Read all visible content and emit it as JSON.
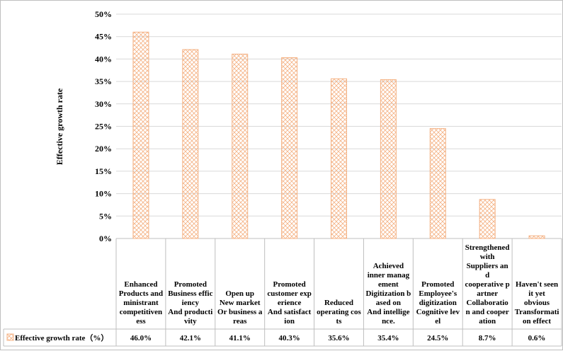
{
  "chart_data": {
    "type": "bar",
    "ylabel": "Effective growth rate",
    "ylim": [
      0,
      50
    ],
    "yticks": [
      "0%",
      "5%",
      "10%",
      "15%",
      "20%",
      "25%",
      "30%",
      "35%",
      "40%",
      "45%",
      "50%"
    ],
    "categories": [
      [
        "Enhanced",
        "Products and",
        "ministrant",
        "competitiven",
        "ess"
      ],
      [
        "Promoted",
        "Business effic",
        "iency",
        "And producti",
        "vity"
      ],
      [
        "Open up",
        "New market",
        "Or business a",
        "reas"
      ],
      [
        "Promoted",
        "customer exp",
        "erience",
        "And satisfact",
        "ion"
      ],
      [
        "Reduced",
        "operating cos",
        "ts"
      ],
      [
        "Achieved",
        "inner manag",
        "ement",
        "Digitization b",
        "ased on",
        "And intellige",
        "nce."
      ],
      [
        "Promoted",
        "Employee's",
        "digitization",
        "Cognitive lev",
        "el"
      ],
      [
        "Strengthened",
        "with",
        "Suppliers an",
        "d",
        "cooperative p",
        "artner",
        "Collaboratio",
        "n and cooper",
        "ation"
      ],
      [
        "Haven't seen",
        "it yet",
        "obvious",
        "Transformati",
        "on effect"
      ]
    ],
    "series": [
      {
        "name": "Effective growth rate（%）",
        "values": [
          46.0,
          42.1,
          41.1,
          40.3,
          35.6,
          35.4,
          24.5,
          8.7,
          0.6
        ],
        "labels": [
          "46.0%",
          "42.1%",
          "41.1%",
          "40.3%",
          "35.6%",
          "35.4%",
          "24.5%",
          "8.7%",
          "0.6%"
        ]
      }
    ],
    "colors": {
      "bar_stroke": "#f4b183",
      "bar_hatch": "#f4b183",
      "grid": "#d9d9d9"
    },
    "grid": true,
    "legend": "table-row"
  }
}
